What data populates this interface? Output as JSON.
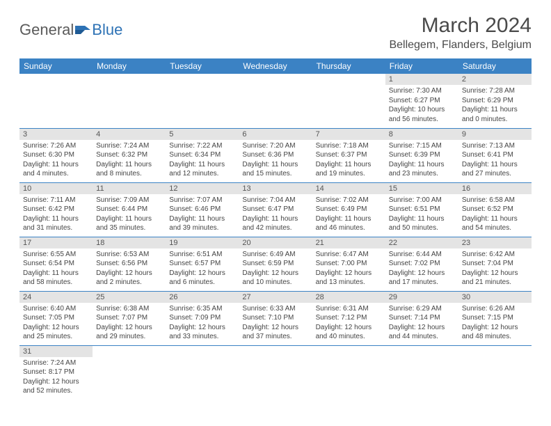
{
  "logo": {
    "part1": "General",
    "part2": "Blue"
  },
  "title": "March 2024",
  "location": "Bellegem, Flanders, Belgium",
  "colors": {
    "header_bg": "#3b82c4",
    "header_fg": "#ffffff",
    "daynum_bg": "#e4e4e4",
    "border": "#3b82c4",
    "logo_blue": "#2d72b5",
    "logo_gray": "#5a5a5a"
  },
  "weekdays": [
    "Sunday",
    "Monday",
    "Tuesday",
    "Wednesday",
    "Thursday",
    "Friday",
    "Saturday"
  ],
  "weeks": [
    [
      null,
      null,
      null,
      null,
      null,
      {
        "n": "1",
        "sr": "7:30 AM",
        "ss": "6:27 PM",
        "dl": "10 hours and 56 minutes."
      },
      {
        "n": "2",
        "sr": "7:28 AM",
        "ss": "6:29 PM",
        "dl": "11 hours and 0 minutes."
      }
    ],
    [
      {
        "n": "3",
        "sr": "7:26 AM",
        "ss": "6:30 PM",
        "dl": "11 hours and 4 minutes."
      },
      {
        "n": "4",
        "sr": "7:24 AM",
        "ss": "6:32 PM",
        "dl": "11 hours and 8 minutes."
      },
      {
        "n": "5",
        "sr": "7:22 AM",
        "ss": "6:34 PM",
        "dl": "11 hours and 12 minutes."
      },
      {
        "n": "6",
        "sr": "7:20 AM",
        "ss": "6:36 PM",
        "dl": "11 hours and 15 minutes."
      },
      {
        "n": "7",
        "sr": "7:18 AM",
        "ss": "6:37 PM",
        "dl": "11 hours and 19 minutes."
      },
      {
        "n": "8",
        "sr": "7:15 AM",
        "ss": "6:39 PM",
        "dl": "11 hours and 23 minutes."
      },
      {
        "n": "9",
        "sr": "7:13 AM",
        "ss": "6:41 PM",
        "dl": "11 hours and 27 minutes."
      }
    ],
    [
      {
        "n": "10",
        "sr": "7:11 AM",
        "ss": "6:42 PM",
        "dl": "11 hours and 31 minutes."
      },
      {
        "n": "11",
        "sr": "7:09 AM",
        "ss": "6:44 PM",
        "dl": "11 hours and 35 minutes."
      },
      {
        "n": "12",
        "sr": "7:07 AM",
        "ss": "6:46 PM",
        "dl": "11 hours and 39 minutes."
      },
      {
        "n": "13",
        "sr": "7:04 AM",
        "ss": "6:47 PM",
        "dl": "11 hours and 42 minutes."
      },
      {
        "n": "14",
        "sr": "7:02 AM",
        "ss": "6:49 PM",
        "dl": "11 hours and 46 minutes."
      },
      {
        "n": "15",
        "sr": "7:00 AM",
        "ss": "6:51 PM",
        "dl": "11 hours and 50 minutes."
      },
      {
        "n": "16",
        "sr": "6:58 AM",
        "ss": "6:52 PM",
        "dl": "11 hours and 54 minutes."
      }
    ],
    [
      {
        "n": "17",
        "sr": "6:55 AM",
        "ss": "6:54 PM",
        "dl": "11 hours and 58 minutes."
      },
      {
        "n": "18",
        "sr": "6:53 AM",
        "ss": "6:56 PM",
        "dl": "12 hours and 2 minutes."
      },
      {
        "n": "19",
        "sr": "6:51 AM",
        "ss": "6:57 PM",
        "dl": "12 hours and 6 minutes."
      },
      {
        "n": "20",
        "sr": "6:49 AM",
        "ss": "6:59 PM",
        "dl": "12 hours and 10 minutes."
      },
      {
        "n": "21",
        "sr": "6:47 AM",
        "ss": "7:00 PM",
        "dl": "12 hours and 13 minutes."
      },
      {
        "n": "22",
        "sr": "6:44 AM",
        "ss": "7:02 PM",
        "dl": "12 hours and 17 minutes."
      },
      {
        "n": "23",
        "sr": "6:42 AM",
        "ss": "7:04 PM",
        "dl": "12 hours and 21 minutes."
      }
    ],
    [
      {
        "n": "24",
        "sr": "6:40 AM",
        "ss": "7:05 PM",
        "dl": "12 hours and 25 minutes."
      },
      {
        "n": "25",
        "sr": "6:38 AM",
        "ss": "7:07 PM",
        "dl": "12 hours and 29 minutes."
      },
      {
        "n": "26",
        "sr": "6:35 AM",
        "ss": "7:09 PM",
        "dl": "12 hours and 33 minutes."
      },
      {
        "n": "27",
        "sr": "6:33 AM",
        "ss": "7:10 PM",
        "dl": "12 hours and 37 minutes."
      },
      {
        "n": "28",
        "sr": "6:31 AM",
        "ss": "7:12 PM",
        "dl": "12 hours and 40 minutes."
      },
      {
        "n": "29",
        "sr": "6:29 AM",
        "ss": "7:14 PM",
        "dl": "12 hours and 44 minutes."
      },
      {
        "n": "30",
        "sr": "6:26 AM",
        "ss": "7:15 PM",
        "dl": "12 hours and 48 minutes."
      }
    ],
    [
      {
        "n": "31",
        "sr": "7:24 AM",
        "ss": "8:17 PM",
        "dl": "12 hours and 52 minutes."
      },
      null,
      null,
      null,
      null,
      null,
      null
    ]
  ],
  "labels": {
    "sunrise": "Sunrise:",
    "sunset": "Sunset:",
    "daylight": "Daylight:"
  }
}
